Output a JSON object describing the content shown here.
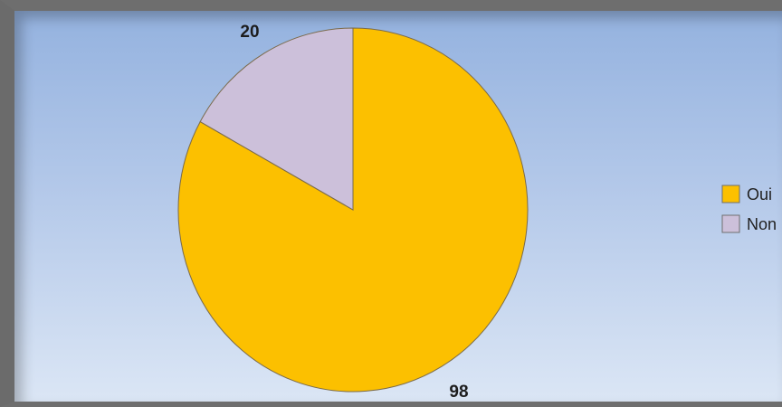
{
  "chart_data": {
    "type": "pie",
    "title": "",
    "slices": [
      {
        "label": "Oui",
        "value": 98,
        "color": "#fcc000"
      },
      {
        "label": "Non",
        "value": 20,
        "color": "#ccc0da"
      }
    ],
    "data_labels": [
      "98",
      "20"
    ],
    "legend": {
      "position": "right",
      "entries": [
        "Oui",
        "Non"
      ]
    },
    "start_angle_deg": 0,
    "direction": "clockwise"
  }
}
